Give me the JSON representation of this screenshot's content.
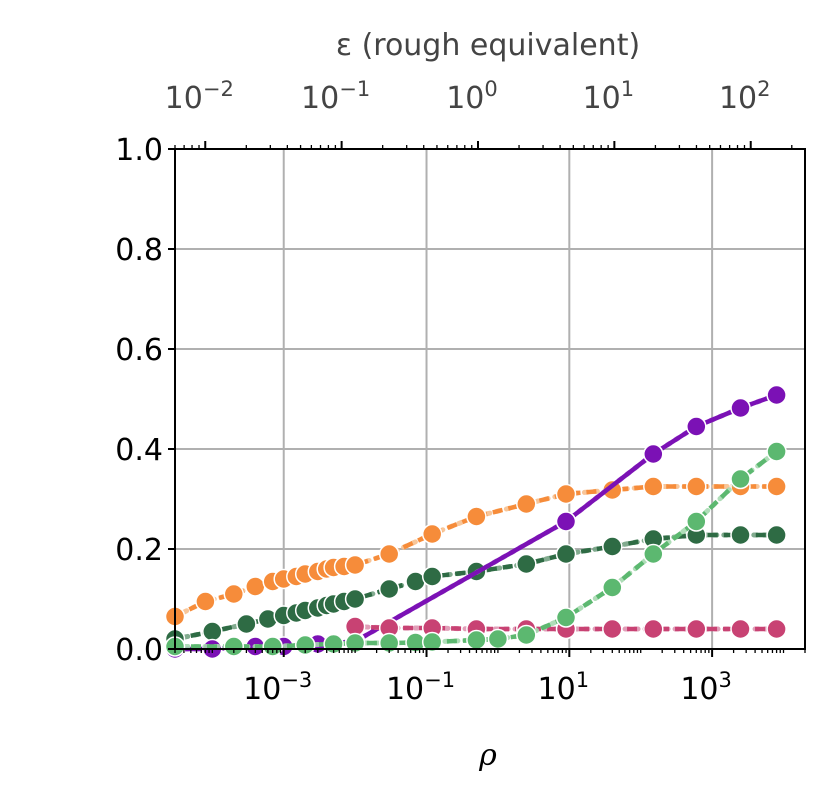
{
  "chart_data": {
    "type": "line",
    "title": "",
    "xlabel": "ρ",
    "ylabel": "",
    "x_scale": "log",
    "xlim": [
      3e-05,
      20000
    ],
    "ylim": [
      0.0,
      1.0
    ],
    "grid": true,
    "x_ticks": [
      {
        "value": 0.001,
        "label": "10",
        "exp": "−3"
      },
      {
        "value": 0.1,
        "label": "10",
        "exp": "−1"
      },
      {
        "value": 10,
        "label": "10",
        "exp": "1"
      },
      {
        "value": 1000,
        "label": "10",
        "exp": "3"
      }
    ],
    "y_ticks": [
      {
        "value": 0.0,
        "label": "0.0"
      },
      {
        "value": 0.2,
        "label": "0.2"
      },
      {
        "value": 0.4,
        "label": "0.4"
      },
      {
        "value": 0.6,
        "label": "0.6"
      },
      {
        "value": 0.8,
        "label": "0.8"
      },
      {
        "value": 1.0,
        "label": "1.0"
      }
    ],
    "top_axis": {
      "label": "ε (rough equivalent)",
      "scale": "log",
      "xlim": [
        0.006,
        250
      ],
      "ticks": [
        {
          "value": 0.01,
          "label": "10",
          "exp": "−2"
        },
        {
          "value": 0.1,
          "label": "10",
          "exp": "−1"
        },
        {
          "value": 1,
          "label": "10",
          "exp": "0"
        },
        {
          "value": 10,
          "label": "10",
          "exp": "1"
        },
        {
          "value": 100,
          "label": "10",
          "exp": "2"
        }
      ]
    },
    "series": [
      {
        "color": "#f68c3a",
        "dash": "10,6",
        "ghost_color": "#f7c08e",
        "x": [
          3e-05,
          8e-05,
          0.0002,
          0.0004,
          0.0007,
          0.001,
          0.0015,
          0.002,
          0.003,
          0.004,
          0.005,
          0.007,
          0.01,
          0.03,
          0.12,
          0.5,
          2.5,
          9,
          40,
          150,
          600,
          2500,
          8000
        ],
        "y": [
          0.065,
          0.095,
          0.11,
          0.125,
          0.135,
          0.14,
          0.145,
          0.15,
          0.155,
          0.16,
          0.163,
          0.165,
          0.168,
          0.19,
          0.23,
          0.265,
          0.29,
          0.31,
          0.318,
          0.325,
          0.325,
          0.325,
          0.325
        ]
      },
      {
        "color": "#2e6b44",
        "dash": "10,6",
        "ghost_color": "#74a283",
        "x": [
          3e-05,
          0.0001,
          0.0003,
          0.0006,
          0.001,
          0.0015,
          0.002,
          0.003,
          0.004,
          0.005,
          0.007,
          0.01,
          0.03,
          0.07,
          0.12,
          0.5,
          2.5,
          9,
          40,
          150,
          600,
          2500,
          8000
        ],
        "y": [
          0.02,
          0.035,
          0.05,
          0.06,
          0.067,
          0.072,
          0.077,
          0.082,
          0.087,
          0.09,
          0.095,
          0.1,
          0.12,
          0.135,
          0.145,
          0.155,
          0.17,
          0.19,
          0.205,
          0.22,
          0.228,
          0.228,
          0.228
        ]
      },
      {
        "color": "#7b11b5",
        "dash": "",
        "ghost_color": "#b57fd6",
        "x": [
          3e-05,
          0.0001,
          0.0004,
          0.001,
          0.003,
          0.01,
          9,
          150,
          600,
          2500,
          8000
        ],
        "y": [
          0.0,
          0.0,
          0.005,
          0.005,
          0.01,
          0.015,
          0.255,
          0.39,
          0.445,
          0.482,
          0.508
        ]
      },
      {
        "color": "#c84273",
        "dash": "10,6",
        "ghost_color": "#de93b0",
        "x": [
          0.01,
          0.03,
          0.12,
          0.5,
          2.5,
          9,
          40,
          150,
          600,
          2500,
          8000
        ],
        "y": [
          0.045,
          0.042,
          0.042,
          0.04,
          0.04,
          0.04,
          0.04,
          0.04,
          0.04,
          0.04,
          0.04
        ]
      },
      {
        "color": "#5cb870",
        "dash": "10,6",
        "ghost_color": "#a6d9b0",
        "x": [
          3e-05,
          0.0002,
          0.0007,
          0.002,
          0.005,
          0.01,
          0.03,
          0.07,
          0.12,
          0.5,
          1.0,
          2.5,
          9,
          40,
          150,
          600,
          2500,
          8000
        ],
        "y": [
          0.005,
          0.005,
          0.005,
          0.008,
          0.01,
          0.012,
          0.012,
          0.013,
          0.014,
          0.018,
          0.02,
          0.028,
          0.063,
          0.123,
          0.19,
          0.255,
          0.34,
          0.395
        ]
      }
    ]
  }
}
